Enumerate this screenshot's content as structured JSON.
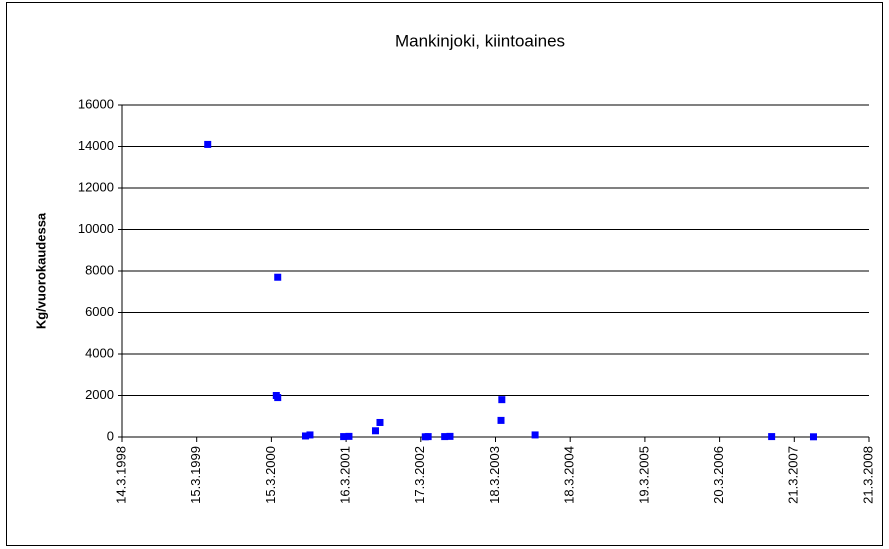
{
  "chart_data": {
    "type": "scatter",
    "title": "Mankinjoki, kiintoaines",
    "ylabel": "Kg/vuorokaudessa",
    "series": [
      {
        "color": "#0000ff",
        "x": [
          "1999-05-08",
          "2000-04-15",
          "2000-04-08",
          "2000-04-15",
          "2000-08-29",
          "2000-09-20",
          "2001-03-04",
          "2001-03-30",
          "2001-08-07",
          "2001-08-29",
          "2002-04-08",
          "2002-04-22",
          "2002-07-12",
          "2002-08-07",
          "2003-04-14",
          "2003-04-18",
          "2003-09-28",
          "2006-11-30",
          "2007-06-23"
        ],
        "values": [
          14100,
          7700,
          2000,
          1900,
          50,
          100,
          20,
          30,
          300,
          700,
          10,
          20,
          20,
          30,
          800,
          1800,
          100,
          20,
          10
        ]
      }
    ],
    "xlim": [
      "1998-03-14",
      "2008-03-21"
    ],
    "xticks": [
      {
        "value": "1998-03-14",
        "label": "14.3.1998"
      },
      {
        "value": "1999-03-15",
        "label": "15.3.1999"
      },
      {
        "value": "2000-03-15",
        "label": "15.3.2000"
      },
      {
        "value": "2001-03-16",
        "label": "16.3.2001"
      },
      {
        "value": "2002-03-17",
        "label": "17.3.2002"
      },
      {
        "value": "2003-03-18",
        "label": "18.3.2003"
      },
      {
        "value": "2004-03-18",
        "label": "18.3.2004"
      },
      {
        "value": "2005-03-19",
        "label": "19.3.2005"
      },
      {
        "value": "2006-03-20",
        "label": "20.3.2006"
      },
      {
        "value": "2007-03-21",
        "label": "21.3.2007"
      },
      {
        "value": "2008-03-21",
        "label": "21.3.2008"
      }
    ],
    "ylim": [
      0,
      16000
    ],
    "yticks": [
      0,
      2000,
      4000,
      6000,
      8000,
      10000,
      12000,
      14000,
      16000
    ],
    "grid": true
  }
}
